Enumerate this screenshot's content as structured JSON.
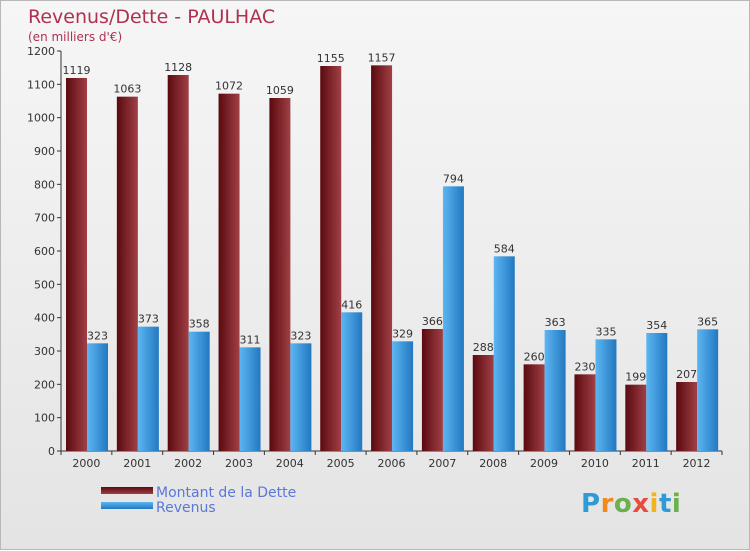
{
  "title": "Revenus/Dette - PAULHAC",
  "subtitle": "(en milliers d'€)",
  "logo": {
    "letters": [
      "P",
      "r",
      "o",
      "x",
      "i",
      "t",
      "i"
    ],
    "colors": [
      "#2f9bd6",
      "#f08a1c",
      "#6ab04c",
      "#e84c3d",
      "#f2b31f",
      "#2f9bd6",
      "#6ab04c"
    ]
  },
  "legend": {
    "dette": "Montant de la Dette",
    "revenus": "Revenus"
  },
  "colors": {
    "dette_dark": "#5a0a0f",
    "dette_light": "#a04046",
    "revenus_dark": "#2378c0",
    "revenus_light": "#5cb6f2"
  },
  "chart_data": {
    "type": "bar",
    "title": "Revenus/Dette - PAULHAC",
    "ylabel": "(en milliers d'€)",
    "xlabel": "",
    "ylim": [
      0,
      1200
    ],
    "yticks": [
      0,
      100,
      200,
      300,
      400,
      500,
      600,
      700,
      800,
      900,
      1000,
      1100,
      1200
    ],
    "categories": [
      "2000",
      "2001",
      "2002",
      "2003",
      "2004",
      "2005",
      "2006",
      "2007",
      "2008",
      "2009",
      "2010",
      "2011",
      "2012"
    ],
    "series": [
      {
        "name": "Montant de la Dette",
        "values": [
          1119,
          1063,
          1128,
          1072,
          1059,
          1155,
          1157,
          366,
          288,
          260,
          230,
          199,
          207
        ]
      },
      {
        "name": "Revenus",
        "values": [
          323,
          373,
          358,
          311,
          323,
          416,
          329,
          794,
          584,
          363,
          335,
          354,
          365
        ]
      }
    ],
    "grid": false,
    "legend_position": "bottom-left"
  }
}
